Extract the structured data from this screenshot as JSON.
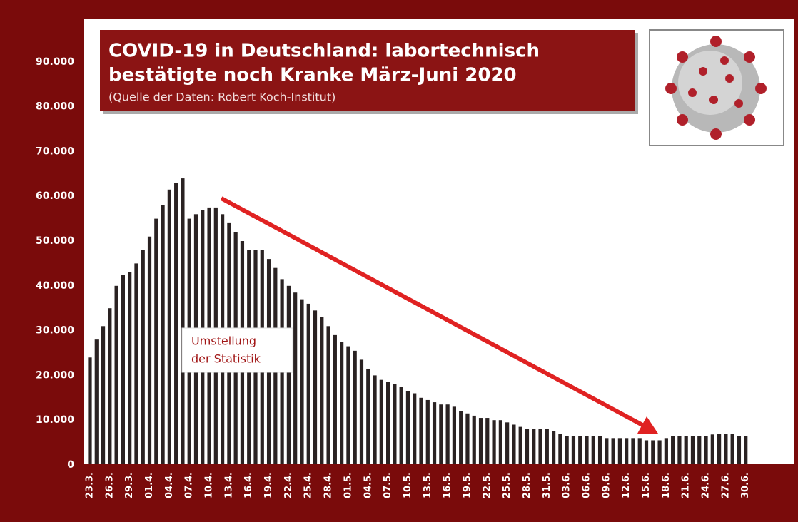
{
  "chart_data": {
    "type": "bar",
    "title": [
      "COVID-19 in Deutschland: labortechnisch",
      "bestätigte noch Kranke März-Juni 2020"
    ],
    "subtitle": "(Quelle der Daten: Robert Koch-Institut)",
    "annotation": [
      "Umstellung",
      "der Statistik"
    ],
    "color": "#2a2222",
    "ylim": [
      0,
      100000
    ],
    "yticks": [
      0,
      {
        "value": 10000,
        "label": "10.000"
      },
      {
        "value": 20000,
        "label": "20.000"
      },
      {
        "value": 30000,
        "label": "30.000"
      },
      {
        "value": 40000,
        "label": "40.000"
      },
      {
        "value": 50000,
        "label": "50.000"
      },
      {
        "value": 60000,
        "label": "60.000"
      },
      {
        "value": 70000,
        "label": "70.000"
      },
      {
        "value": 80000,
        "label": "80.000"
      },
      {
        "value": 90000,
        "label": "90.000"
      }
    ],
    "categories": [
      "23.3.",
      null,
      null,
      "26.3.",
      null,
      null,
      "29.3.",
      null,
      null,
      "01.4.",
      null,
      null,
      "04.4.",
      null,
      null,
      "07.4.",
      null,
      null,
      "10.4.",
      null,
      null,
      "13.4.",
      null,
      null,
      "16.4.",
      null,
      null,
      "19.4.",
      null,
      null,
      "22.4.",
      null,
      null,
      "25.4.",
      null,
      null,
      "28.4.",
      null,
      null,
      "01.5.",
      null,
      null,
      "04.5.",
      null,
      null,
      "07.5.",
      null,
      null,
      "10.5.",
      null,
      null,
      "13.5.",
      null,
      null,
      "16.5.",
      null,
      null,
      "19.5.",
      null,
      null,
      "22.5.",
      null,
      null,
      "25.5.",
      null,
      null,
      "28.5.",
      null,
      null,
      "31.5.",
      null,
      null,
      "03.6.",
      null,
      null,
      "06.6.",
      null,
      null,
      "09.6.",
      null,
      null,
      "12.6.",
      null,
      null,
      "15.6.",
      null,
      null,
      "18.6.",
      null,
      null,
      "21.6.",
      null,
      null,
      "24.6.",
      null,
      null,
      "27.6.",
      null,
      null,
      "30.6."
    ],
    "values": [
      24000,
      28000,
      31000,
      35000,
      40000,
      42500,
      43000,
      45000,
      48000,
      51000,
      55000,
      58000,
      61500,
      63000,
      64000,
      55000,
      56000,
      57000,
      57500,
      57500,
      56000,
      54000,
      52000,
      50000,
      48000,
      48000,
      48000,
      46000,
      44000,
      41500,
      40000,
      38500,
      37000,
      36000,
      34500,
      33000,
      31000,
      29000,
      27500,
      26500,
      25500,
      23500,
      21500,
      20000,
      19000,
      18500,
      18000,
      17500,
      16500,
      16000,
      15000,
      14500,
      14000,
      13500,
      13500,
      13000,
      12000,
      11500,
      11000,
      10500,
      10500,
      10000,
      10000,
      9500,
      9000,
      8500,
      8000,
      8000,
      8000,
      8000,
      7500,
      7000,
      6500,
      6500,
      6500,
      6500,
      6500,
      6500,
      6000,
      6000,
      6000,
      6000,
      6000,
      6000,
      5500,
      5500,
      5500,
      6000,
      6500,
      6500,
      6500,
      6500,
      6500,
      6500,
      6800,
      7000,
      7000,
      7000,
      6500,
      6500
    ]
  }
}
